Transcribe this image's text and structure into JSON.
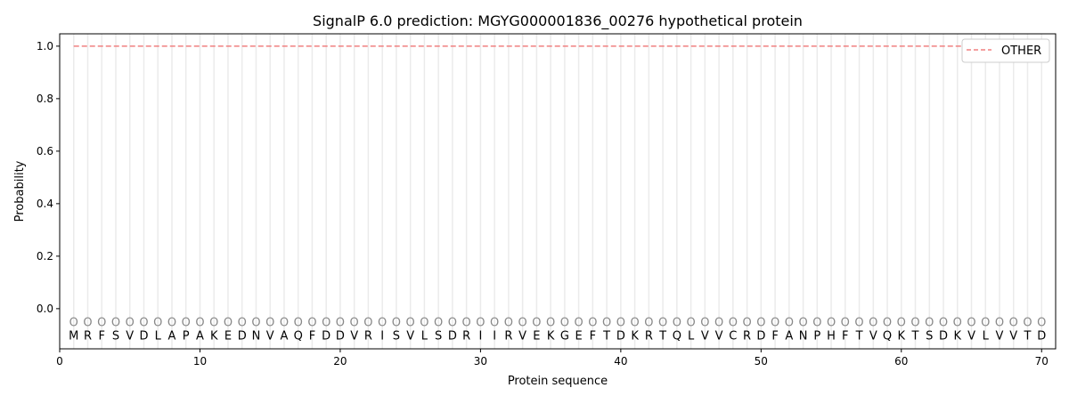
{
  "chart_data": {
    "type": "line",
    "title": "SignalP 6.0 prediction: MGYG000001836_00276 hypothetical protein",
    "xlabel": "Protein sequence",
    "ylabel": "Probability",
    "xlim": [
      0,
      71
    ],
    "ylim": [
      -0.153,
      1.047
    ],
    "xticks": [
      0,
      10,
      20,
      30,
      40,
      50,
      60,
      70
    ],
    "yticks": [
      "0.0",
      "0.2",
      "0.4",
      "0.6",
      "0.8",
      "1.0"
    ],
    "legend_position": "top-right",
    "sequence": "MRFSVDLAPAKEDNVAQFDDVRISVLSDRIIRVEKGEFTDKRTQLVVCRDFANPHFTVQKTSDKVLVVTD",
    "position_label": "O",
    "series": [
      {
        "name": "OTHER",
        "color": "#f08080",
        "style": "dashed",
        "x_start": 1,
        "x_end": 70,
        "value": 1.0
      }
    ]
  }
}
